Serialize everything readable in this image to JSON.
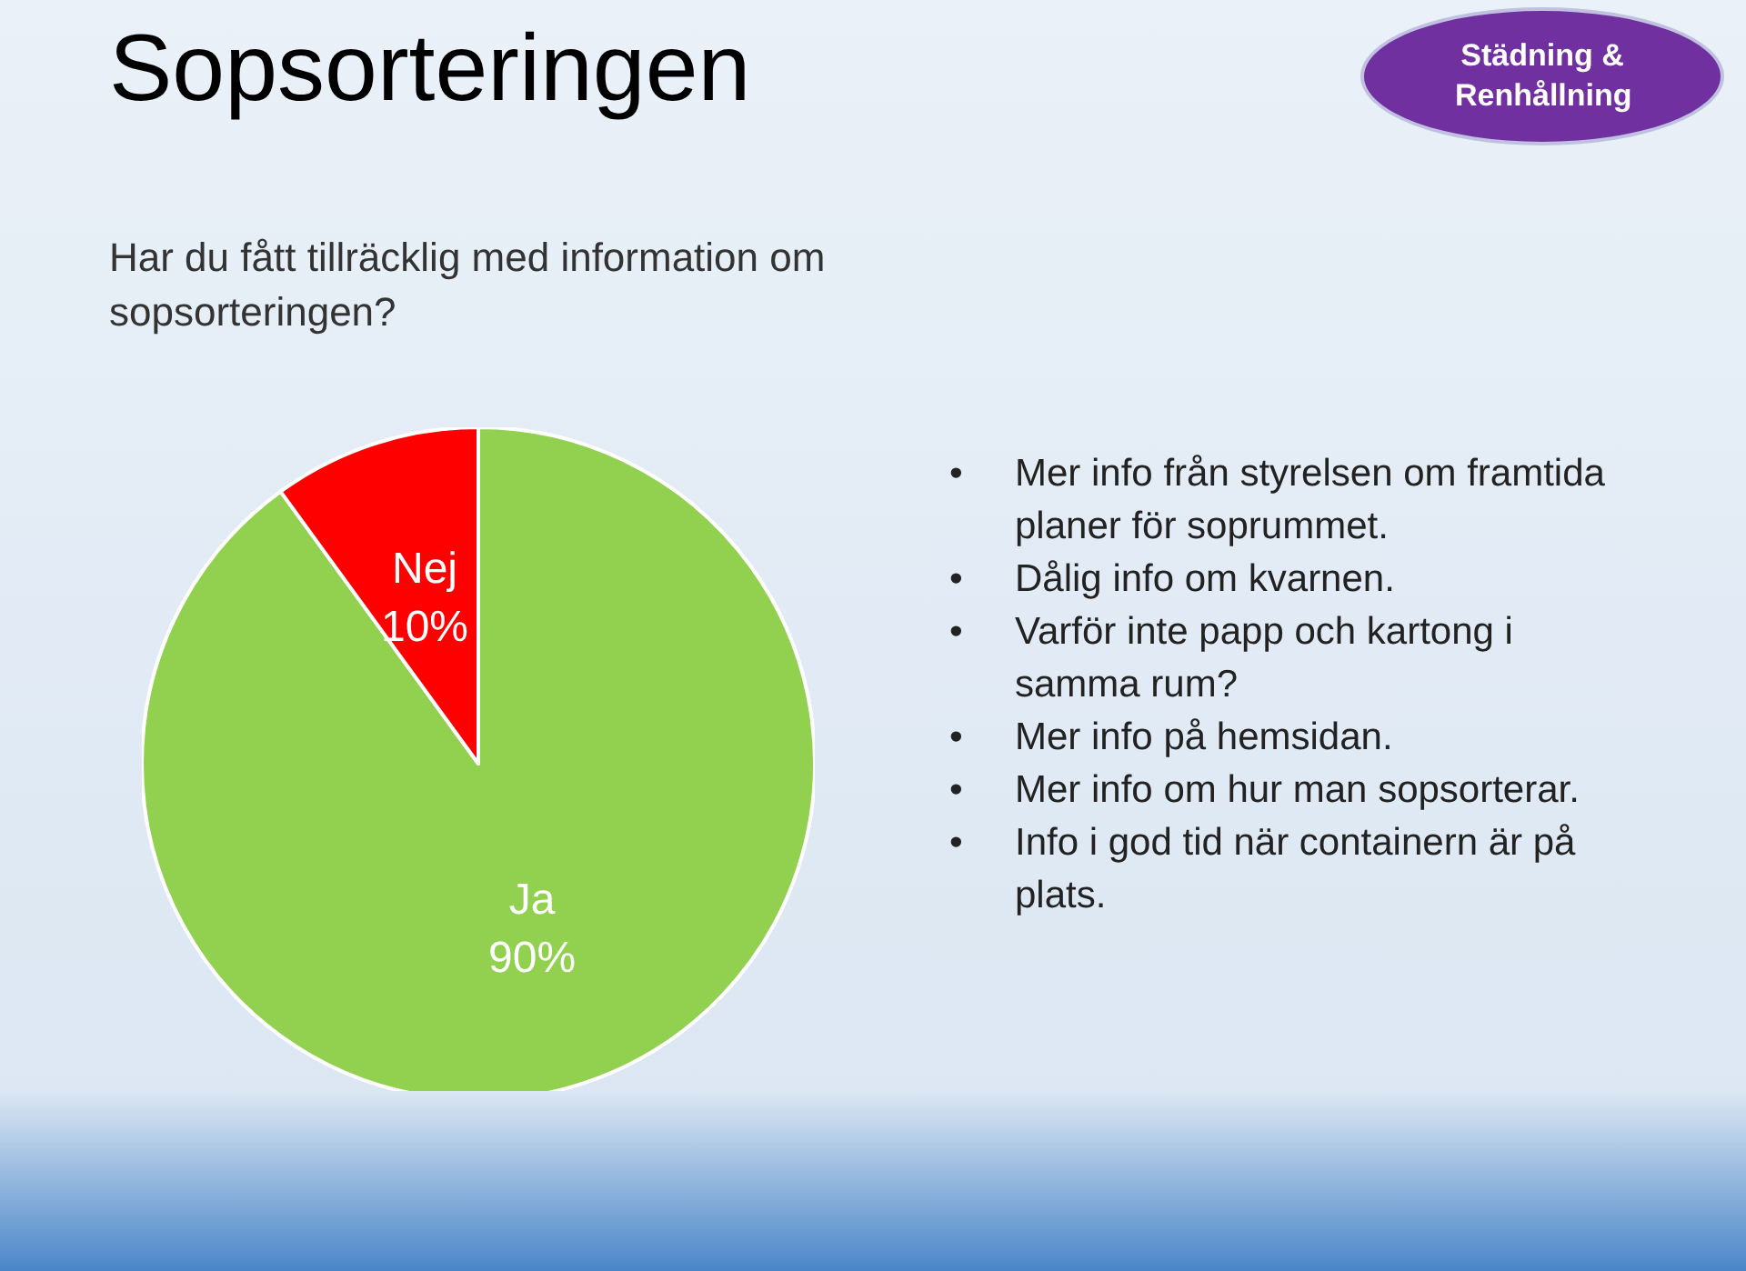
{
  "chart_data": {
    "type": "pie",
    "title": "Sopsorteringen",
    "subtitle": "Har du fått tillräcklig med information om sopsorteringen?",
    "categories": [
      "Ja",
      "Nej"
    ],
    "values": [
      90,
      10
    ],
    "colors": [
      "#92d050",
      "#ff0000"
    ],
    "value_labels": [
      "90%",
      "10%"
    ],
    "legend": false,
    "annotations": [
      "Städning & Renhållning",
      "• Mer info från styrelsen om framtida planer för soprummet.",
      "• Dålig info om kvarnen.",
      "• Varför inte papp och kartong i samma rum?",
      "• Mer info på hemsidan.",
      "• Mer info om hur man sopsorterar.",
      "• Info i god tid när containern är på plats."
    ]
  }
}
